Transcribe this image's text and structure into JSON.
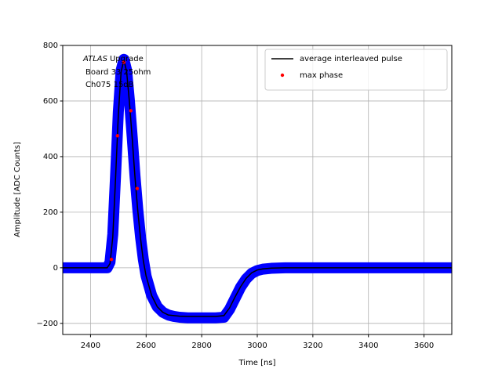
{
  "chart_data": {
    "type": "line",
    "xlabel": "Time [ns]",
    "ylabel": "Amplitude [ADC Counts]",
    "annotation": {
      "emphasis": "ATLAS",
      "lines": [
        "Upgrade",
        "Board 33 25ohm",
        "Ch075 15dB"
      ]
    },
    "xlim": [
      2300,
      3700
    ],
    "ylim": [
      -240,
      800
    ],
    "xticks": [
      2400,
      2600,
      2800,
      3000,
      3200,
      3400,
      3600
    ],
    "yticks": [
      {
        "value": -200,
        "label": "−200"
      },
      0,
      200,
      400,
      600,
      800
    ],
    "grid": true,
    "legend": "upper right",
    "series": [
      {
        "color": "#0000ff",
        "style": "band",
        "x": [
          2300,
          2460,
          2470,
          2480,
          2490,
          2500,
          2510,
          2520,
          2530,
          2540,
          2550,
          2560,
          2570,
          2580,
          2590,
          2600,
          2620,
          2640,
          2660,
          2680,
          2700,
          2720,
          2750,
          2800,
          2850,
          2880,
          2900,
          2920,
          2940,
          2960,
          2980,
          3000,
          3020,
          3050,
          3100,
          3700
        ],
        "values": [
          0,
          0,
          20,
          120,
          330,
          560,
          710,
          750,
          710,
          600,
          470,
          330,
          210,
          110,
          30,
          -30,
          -100,
          -140,
          -160,
          -170,
          -175,
          -178,
          -180,
          -180,
          -180,
          -178,
          -150,
          -110,
          -70,
          -40,
          -20,
          -10,
          -5,
          -2,
          0,
          0
        ]
      },
      {
        "name": "average interleaved pulse",
        "color": "#000000",
        "style": "line",
        "x": [
          2300,
          2460,
          2470,
          2480,
          2490,
          2500,
          2510,
          2520,
          2530,
          2540,
          2550,
          2560,
          2570,
          2580,
          2590,
          2600,
          2620,
          2640,
          2660,
          2680,
          2700,
          2720,
          2750,
          2800,
          2850,
          2880,
          2900,
          2920,
          2940,
          2960,
          2980,
          3000,
          3020,
          3050,
          3100,
          3700
        ],
        "values": [
          0,
          0,
          15,
          110,
          320,
          550,
          705,
          748,
          705,
          595,
          465,
          325,
          205,
          105,
          25,
          -30,
          -100,
          -140,
          -160,
          -170,
          -172,
          -174,
          -175,
          -175,
          -175,
          -172,
          -145,
          -105,
          -68,
          -38,
          -18,
          -8,
          -4,
          -1,
          0,
          0
        ]
      },
      {
        "name": "max phase",
        "color": "#ff0000",
        "style": "points",
        "x": [
          2475,
          2497,
          2520,
          2545,
          2568
        ],
        "values": [
          30,
          475,
          740,
          565,
          285
        ]
      }
    ]
  }
}
